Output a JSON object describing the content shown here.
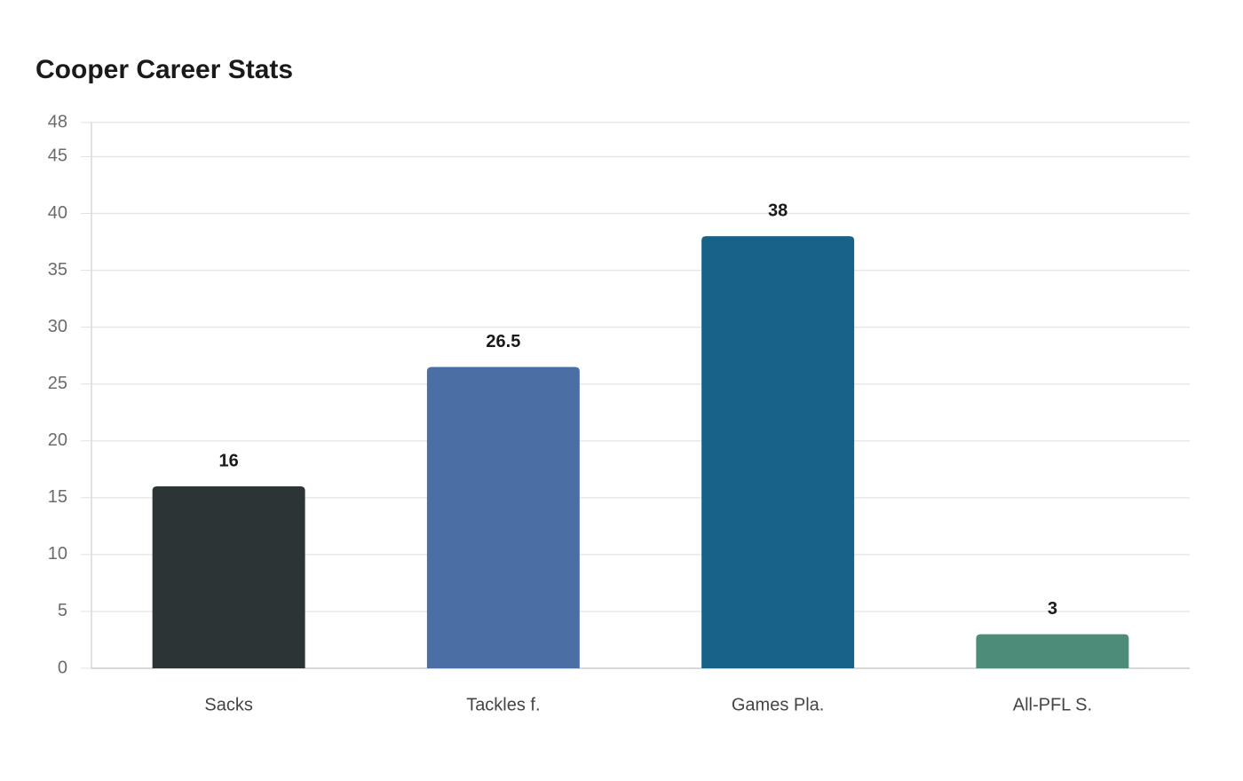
{
  "chart_data": {
    "type": "bar",
    "title": "Cooper Career Stats",
    "categories": [
      "Sacks",
      "Tackles f.",
      "Games Pla.",
      "All-PFL S."
    ],
    "values": [
      16,
      26.5,
      38,
      3
    ],
    "colors": [
      "#2d3436",
      "#4a6fa5",
      "#186188",
      "#4e8c7a"
    ],
    "ylim": [
      0,
      48
    ],
    "yticks": [
      0,
      5,
      10,
      15,
      20,
      25,
      30,
      35,
      40,
      45,
      48
    ],
    "grid": true
  }
}
